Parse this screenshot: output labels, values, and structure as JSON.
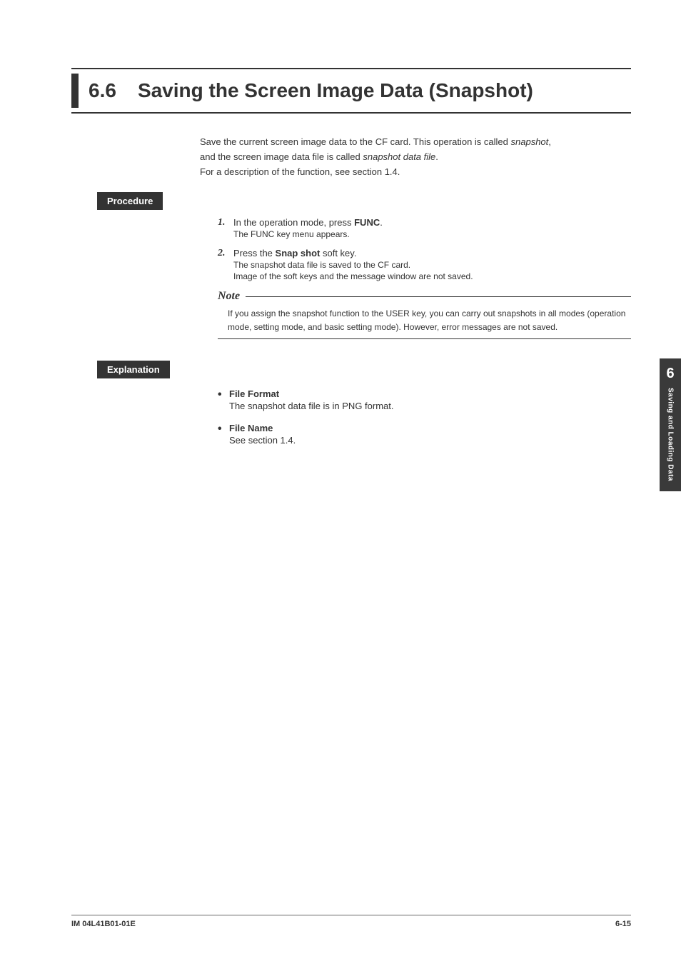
{
  "title": {
    "number": "6.6",
    "text": "Saving the Screen Image Data (Snapshot)"
  },
  "intro": {
    "line1_pre": "Save the current screen image data to the CF card. This operation is called ",
    "line1_italic": "snapshot",
    "line1_post": ",",
    "line2_pre": "and the screen image data file is called ",
    "line2_italic": "snapshot data file",
    "line2_post": ".",
    "line3": "For a description of the function, see section 1.4."
  },
  "labels": {
    "procedure": "Procedure",
    "explanation": "Explanation",
    "note": "Note"
  },
  "steps": [
    {
      "num": "1.",
      "main_pre": "In the operation mode, press ",
      "main_bold": "FUNC",
      "main_post": ".",
      "subs": [
        "The FUNC key menu appears."
      ]
    },
    {
      "num": "2.",
      "main_pre": "Press the ",
      "main_bold": "Snap shot",
      "main_post": " soft key.",
      "subs": [
        "The snapshot data file is saved to the CF card.",
        "Image of the soft keys and the message window are not saved."
      ]
    }
  ],
  "note_text": "If you assign the snapshot function to the USER key, you can carry out snapshots in all modes (operation mode, setting mode, and basic setting mode). However, error messages are not saved.",
  "explanation_items": [
    {
      "title": "File Format",
      "body": "The snapshot data file is in PNG format."
    },
    {
      "title": "File Name",
      "body": "See section 1.4."
    }
  ],
  "side_tab": {
    "number": "6",
    "text": "Saving and Loading Data"
  },
  "footer": {
    "left": "IM 04L41B01-01E",
    "right": "6-15"
  }
}
